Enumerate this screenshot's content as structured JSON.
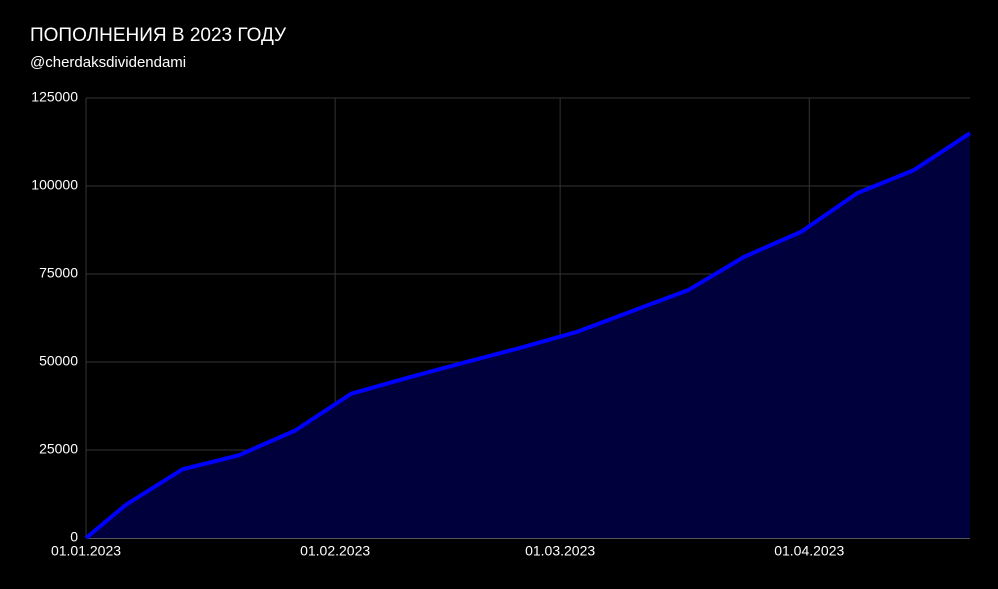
{
  "chart_data": {
    "type": "area",
    "title": "ПОПОЛНЕНИЯ В 2023 ГОДУ",
    "subtitle": "@cherdaksdividendami",
    "x": [
      "01.01.2023",
      "06.01.2023",
      "13.01.2023",
      "20.01.2023",
      "27.01.2023",
      "03.02.2023",
      "10.02.2023",
      "17.02.2023",
      "24.02.2023",
      "03.03.2023",
      "10.03.2023",
      "17.03.2023",
      "24.03.2023",
      "31.03.2023",
      "07.04.2023",
      "14.04.2023",
      "21.04.2023"
    ],
    "series": [
      {
        "name": "Пополнения",
        "color": "#0000ff",
        "fill": "#00003c",
        "values": [
          0,
          9500,
          19500,
          23500,
          30500,
          41000,
          45500,
          49800,
          54000,
          58500,
          64500,
          70500,
          80000,
          87000,
          98000,
          104500,
          115000
        ]
      }
    ],
    "xlim": [
      "01.01.2023",
      "21.04.2023"
    ],
    "xticks": [
      "01.01.2023",
      "01.02.2023",
      "01.03.2023",
      "01.04.2023"
    ],
    "ylim": [
      0,
      125000
    ],
    "yticks": [
      0,
      25000,
      50000,
      75000,
      100000,
      125000
    ],
    "grid": true
  }
}
